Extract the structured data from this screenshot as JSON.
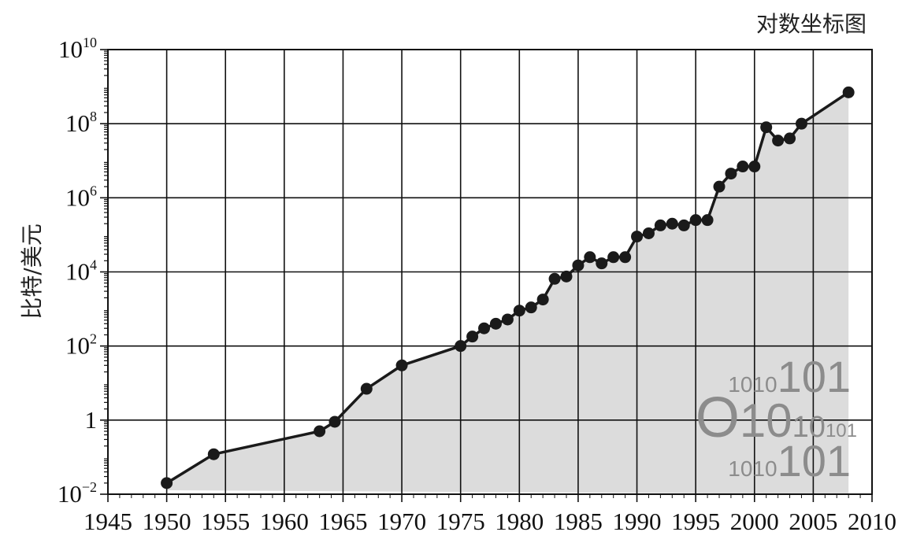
{
  "chart_data": {
    "type": "line",
    "title": "对数坐标图",
    "xlabel": "",
    "ylabel": "比特/美元",
    "yscale": "log",
    "xlim": [
      1945,
      2010
    ],
    "ylim": [
      0.01,
      10000000000
    ],
    "x_ticks": [
      "1945",
      "1950",
      "1955",
      "1960",
      "1965",
      "1970",
      "1975",
      "1980",
      "1985",
      "1990",
      "1995",
      "2000",
      "2005",
      "2010"
    ],
    "y_ticks": [
      {
        "value": 0.01,
        "base": "10",
        "exp": "−2"
      },
      {
        "value": 1,
        "base": "1",
        "exp": ""
      },
      {
        "value": 100,
        "base": "10",
        "exp": "2"
      },
      {
        "value": 10000,
        "base": "10",
        "exp": "4"
      },
      {
        "value": 1000000,
        "base": "10",
        "exp": "6"
      },
      {
        "value": 100000000,
        "base": "10",
        "exp": "8"
      },
      {
        "value": 10000000000,
        "base": "10",
        "exp": "10"
      }
    ],
    "grid": true,
    "area_fill": "#dcdcdc",
    "line_color": "#1a1a1a",
    "series": [
      {
        "x": [
          1950,
          1954,
          1963,
          1964.3,
          1967,
          1970,
          1975,
          1976,
          1977,
          1978,
          1979,
          1980,
          1981,
          1982,
          1983,
          1984,
          1985,
          1986,
          1987,
          1988,
          1989,
          1990,
          1991,
          1992,
          1993,
          1994,
          1995,
          1996,
          1997,
          1998,
          1999,
          2000,
          2001,
          2002,
          2003,
          2004,
          2008
        ],
        "y": [
          0.02,
          0.12,
          0.5,
          0.9,
          7,
          30,
          100,
          180,
          300,
          400,
          520,
          900,
          1100,
          1800,
          6500,
          7500,
          15000,
          25000,
          17000,
          25000,
          25000,
          90000,
          110000,
          180000,
          200000,
          180000,
          250000,
          250000,
          2000000,
          4500000,
          7000000,
          7000000,
          80000000,
          35000000,
          40000000,
          100000000,
          700000000
        ]
      }
    ],
    "watermark_lines": [
      "1010101",
      "O1010101",
      "1010101"
    ]
  }
}
